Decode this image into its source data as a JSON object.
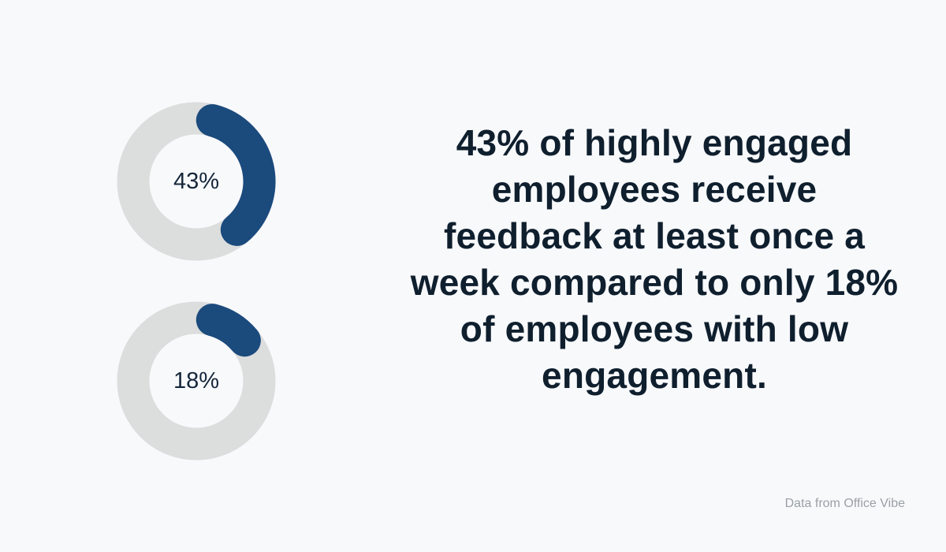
{
  "chart_data": [
    {
      "type": "pie",
      "variant": "donut",
      "label": "43%",
      "value": 43,
      "max": 100,
      "fill_color": "#1b4a7d",
      "track_color": "#dcdddd"
    },
    {
      "type": "pie",
      "variant": "donut",
      "label": "18%",
      "value": 18,
      "max": 100,
      "fill_color": "#1b4a7d",
      "track_color": "#dcdddd"
    }
  ],
  "headline": "43% of highly engaged employees receive feedback at least once a week compared to only 18% of employees with low engagement.",
  "source_note": "Data from Office Vibe",
  "colors": {
    "background": "#f8f9fb",
    "text": "#0f1f2e",
    "accent": "#1b4a7d",
    "track": "#dcdddd",
    "muted": "#9aa0a6"
  }
}
